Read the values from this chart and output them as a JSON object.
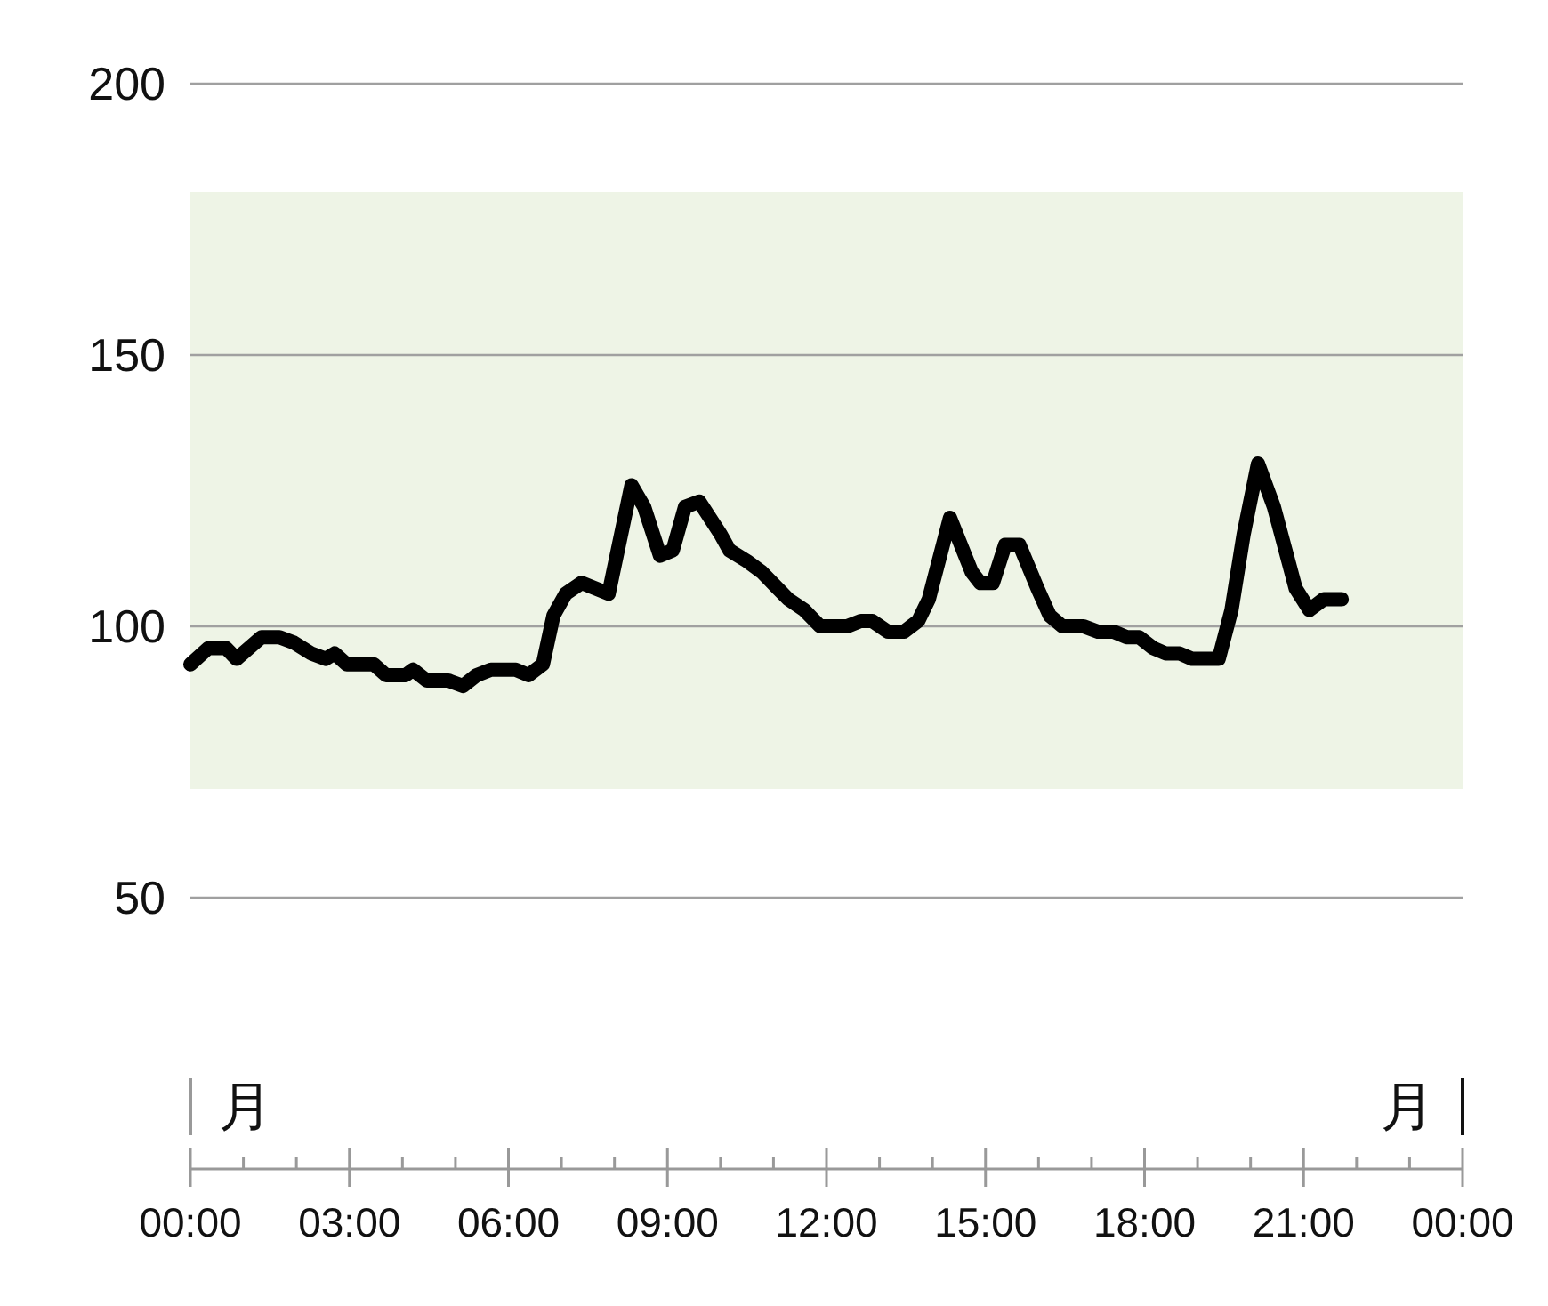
{
  "chart_data": {
    "type": "line",
    "color": "#000000",
    "x": [
      0,
      0.34,
      0.67,
      0.87,
      1.34,
      1.68,
      1.95,
      2.28,
      2.55,
      2.72,
      2.95,
      3.46,
      3.69,
      4.06,
      4.2,
      4.46,
      4.87,
      5.14,
      5.4,
      5.67,
      6.14,
      6.38,
      6.65,
      6.85,
      7.08,
      7.38,
      7.89,
      8.32,
      8.56,
      8.86,
      9.1,
      9.33,
      9.6,
      10,
      10.17,
      10.5,
      10.78,
      11.08,
      11.28,
      11.58,
      11.88,
      12.39,
      12.65,
      12.86,
      13.16,
      13.46,
      13.73,
      13.93,
      14.33,
      14.74,
      14.9,
      15.14,
      15.37,
      15.64,
      15.98,
      16.21,
      16.45,
      16.85,
      17.12,
      17.42,
      17.66,
      17.9,
      18.16,
      18.4,
      18.66,
      18.9,
      19.4,
      19.64,
      19.87,
      20.14,
      20.44,
      20.85,
      21.11,
      21.38,
      21.72
    ],
    "values": [
      93,
      96,
      96,
      94,
      98,
      98,
      97,
      95,
      94,
      95,
      93,
      93,
      91,
      91,
      92,
      90,
      90,
      89,
      91,
      92,
      92,
      91,
      93,
      102,
      106,
      108,
      106,
      126,
      122,
      113,
      114,
      122,
      123,
      117,
      114,
      112,
      110,
      107,
      105,
      103,
      100,
      100,
      101,
      101,
      99,
      99,
      101,
      105,
      120,
      110,
      108,
      108,
      115,
      115,
      107,
      102,
      100,
      100,
      99,
      99,
      98,
      98,
      96,
      95,
      95,
      94,
      94,
      103,
      117,
      130,
      122,
      107,
      103,
      105,
      105
    ],
    "xlim": [
      0,
      24
    ],
    "xticks": [
      {
        "value": 0,
        "label": "00:00"
      },
      {
        "value": 1,
        "label": null
      },
      {
        "value": 2,
        "label": null
      },
      {
        "value": 3,
        "label": "03:00"
      },
      {
        "value": 4,
        "label": null
      },
      {
        "value": 5,
        "label": null
      },
      {
        "value": 6,
        "label": "06:00"
      },
      {
        "value": 7,
        "label": null
      },
      {
        "value": 8,
        "label": null
      },
      {
        "value": 9,
        "label": "09:00"
      },
      {
        "value": 10,
        "label": null
      },
      {
        "value": 11,
        "label": null
      },
      {
        "value": 12,
        "label": "12:00"
      },
      {
        "value": 13,
        "label": null
      },
      {
        "value": 14,
        "label": null
      },
      {
        "value": 15,
        "label": "15:00"
      },
      {
        "value": 16,
        "label": null
      },
      {
        "value": 17,
        "label": null
      },
      {
        "value": 18,
        "label": "18:00"
      },
      {
        "value": 19,
        "label": null
      },
      {
        "value": 20,
        "label": null
      },
      {
        "value": 21,
        "label": "21:00"
      },
      {
        "value": 22,
        "label": null
      },
      {
        "value": 23,
        "label": null
      },
      {
        "value": 24,
        "label": "00:00"
      }
    ],
    "ylim": [
      0,
      200
    ],
    "yticks": [
      50,
      100,
      150,
      200
    ],
    "grid": "y",
    "bands": [
      {
        "axis": "y",
        "from": 70,
        "to": 180,
        "color": "#eef4e6"
      }
    ],
    "annotations": [
      "月",
      "月"
    ]
  }
}
